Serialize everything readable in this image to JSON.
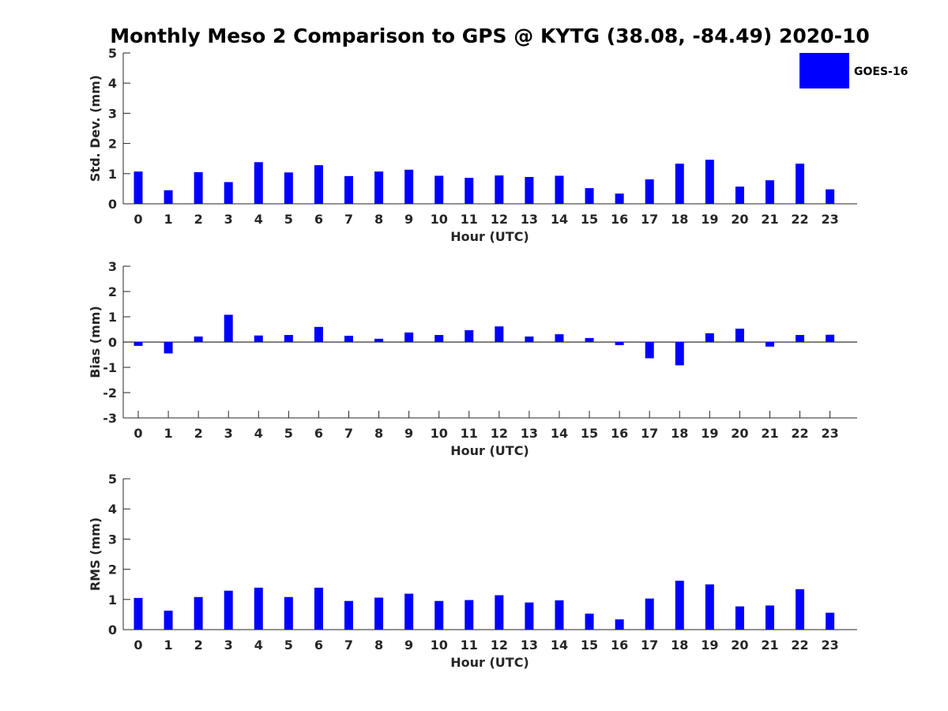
{
  "title": "Monthly Meso 2 Comparison to GPS @ KYTG (38.08, -84.49) 2020-10",
  "legend": {
    "label": "GOES-16",
    "color": "#0000ff"
  },
  "chart_data": [
    {
      "type": "bar",
      "name": "std-dev",
      "xlabel": "Hour (UTC)",
      "ylabel": "Std. Dev. (mm)",
      "ylim": [
        0,
        5
      ],
      "yticks": [
        0,
        1,
        2,
        3,
        4,
        5
      ],
      "categories": [
        "0",
        "1",
        "2",
        "3",
        "4",
        "5",
        "6",
        "7",
        "8",
        "9",
        "10",
        "11",
        "12",
        "13",
        "14",
        "15",
        "16",
        "17",
        "18",
        "19",
        "20",
        "21",
        "22",
        "23"
      ],
      "series": [
        {
          "name": "GOES-16",
          "color": "#0000ff",
          "values": [
            1.07,
            0.45,
            1.05,
            0.72,
            1.38,
            1.04,
            1.28,
            0.92,
            1.07,
            1.13,
            0.93,
            0.86,
            0.94,
            0.89,
            0.93,
            0.52,
            0.34,
            0.81,
            1.33,
            1.46,
            0.57,
            0.78,
            1.33,
            0.48
          ]
        }
      ]
    },
    {
      "type": "bar",
      "name": "bias",
      "xlabel": "Hour (UTC)",
      "ylabel": "Bias (mm)",
      "ylim": [
        -3,
        3
      ],
      "yticks": [
        -3,
        -2,
        -1,
        0,
        1,
        2,
        3
      ],
      "categories": [
        "0",
        "1",
        "2",
        "3",
        "4",
        "5",
        "6",
        "7",
        "8",
        "9",
        "10",
        "11",
        "12",
        "13",
        "14",
        "15",
        "16",
        "17",
        "18",
        "19",
        "20",
        "21",
        "22",
        "23"
      ],
      "series": [
        {
          "name": "GOES-16",
          "color": "#0000ff",
          "values": [
            -0.15,
            -0.45,
            0.22,
            1.08,
            0.26,
            0.28,
            0.6,
            0.25,
            0.13,
            0.38,
            0.28,
            0.47,
            0.62,
            0.22,
            0.31,
            0.16,
            -0.12,
            -0.64,
            -0.92,
            0.35,
            0.53,
            -0.18,
            0.28,
            0.29
          ]
        }
      ]
    },
    {
      "type": "bar",
      "name": "rms",
      "xlabel": "Hour (UTC)",
      "ylabel": "RMS (mm)",
      "ylim": [
        0,
        5
      ],
      "yticks": [
        0,
        1,
        2,
        3,
        4,
        5
      ],
      "categories": [
        "0",
        "1",
        "2",
        "3",
        "4",
        "5",
        "6",
        "7",
        "8",
        "9",
        "10",
        "11",
        "12",
        "13",
        "14",
        "15",
        "16",
        "17",
        "18",
        "19",
        "20",
        "21",
        "22",
        "23"
      ],
      "series": [
        {
          "name": "GOES-16",
          "color": "#0000ff",
          "values": [
            1.05,
            0.63,
            1.08,
            1.29,
            1.39,
            1.08,
            1.39,
            0.95,
            1.06,
            1.19,
            0.95,
            0.98,
            1.14,
            0.9,
            0.97,
            0.53,
            0.34,
            1.03,
            1.62,
            1.5,
            0.77,
            0.8,
            1.34,
            0.56
          ]
        }
      ]
    }
  ]
}
